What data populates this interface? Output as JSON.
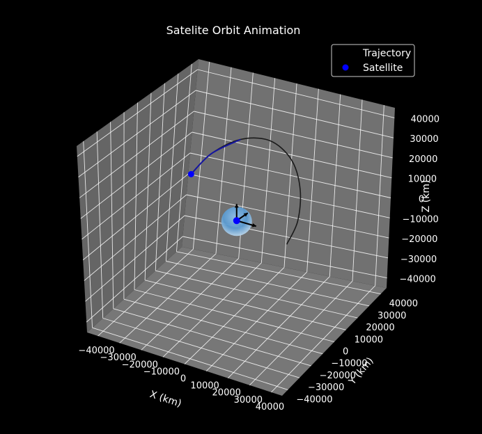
{
  "chart_data": {
    "type": "line3d",
    "title": "Satelite Orbit Animation",
    "xlabel": "X (km)",
    "ylabel": "Y (km)",
    "zlabel": "Z (km)",
    "xlim": [
      -45000,
      45000
    ],
    "ylim": [
      -45000,
      45000
    ],
    "zlim": [
      -45000,
      45000
    ],
    "ticks": {
      "x": [
        -40000,
        -30000,
        -20000,
        -10000,
        0,
        10000,
        20000,
        30000,
        40000
      ],
      "y": [
        -40000,
        -30000,
        -20000,
        -10000,
        0,
        10000,
        20000,
        30000,
        40000
      ],
      "z": [
        -40000,
        -30000,
        -20000,
        -10000,
        0,
        10000,
        20000,
        30000,
        40000
      ]
    },
    "grid": true,
    "legend": {
      "placement": "top-right",
      "entries": [
        {
          "label": "Trajectory",
          "marker": "none",
          "color": "#000000"
        },
        {
          "label": "Satellite",
          "marker": "circle",
          "color": "#0000ff"
        }
      ]
    },
    "colors": {
      "background": "#000000",
      "pane": "#777777",
      "grid": "#ffffff",
      "trajectory": "#1a1a1a",
      "trajectory_recent": "#1515a0",
      "satellite": "#0000ff",
      "earth": "#4f8fc7"
    },
    "earth": {
      "center": [
        0,
        0,
        0
      ],
      "radius": 6371
    },
    "satellite_position": [
      -25000,
      8000,
      12000
    ],
    "trajectory": {
      "points": [
        [
          -25000,
          8000,
          12000
        ],
        [
          -19000,
          13000,
          21000
        ],
        [
          -9000,
          18000,
          28000
        ],
        [
          3000,
          20000,
          29500
        ],
        [
          14000,
          18000,
          24000
        ],
        [
          21000,
          13000,
          14000
        ],
        [
          24000,
          6000,
          3000
        ],
        [
          22000,
          1000,
          -6000
        ]
      ]
    },
    "arrows": [
      {
        "name": "z-arrow",
        "dir": [
          0,
          0,
          1
        ]
      },
      {
        "name": "x-arrow",
        "dir": [
          1,
          0,
          0
        ]
      },
      {
        "name": "y-arrow",
        "dir": [
          0,
          1,
          0
        ]
      }
    ]
  }
}
